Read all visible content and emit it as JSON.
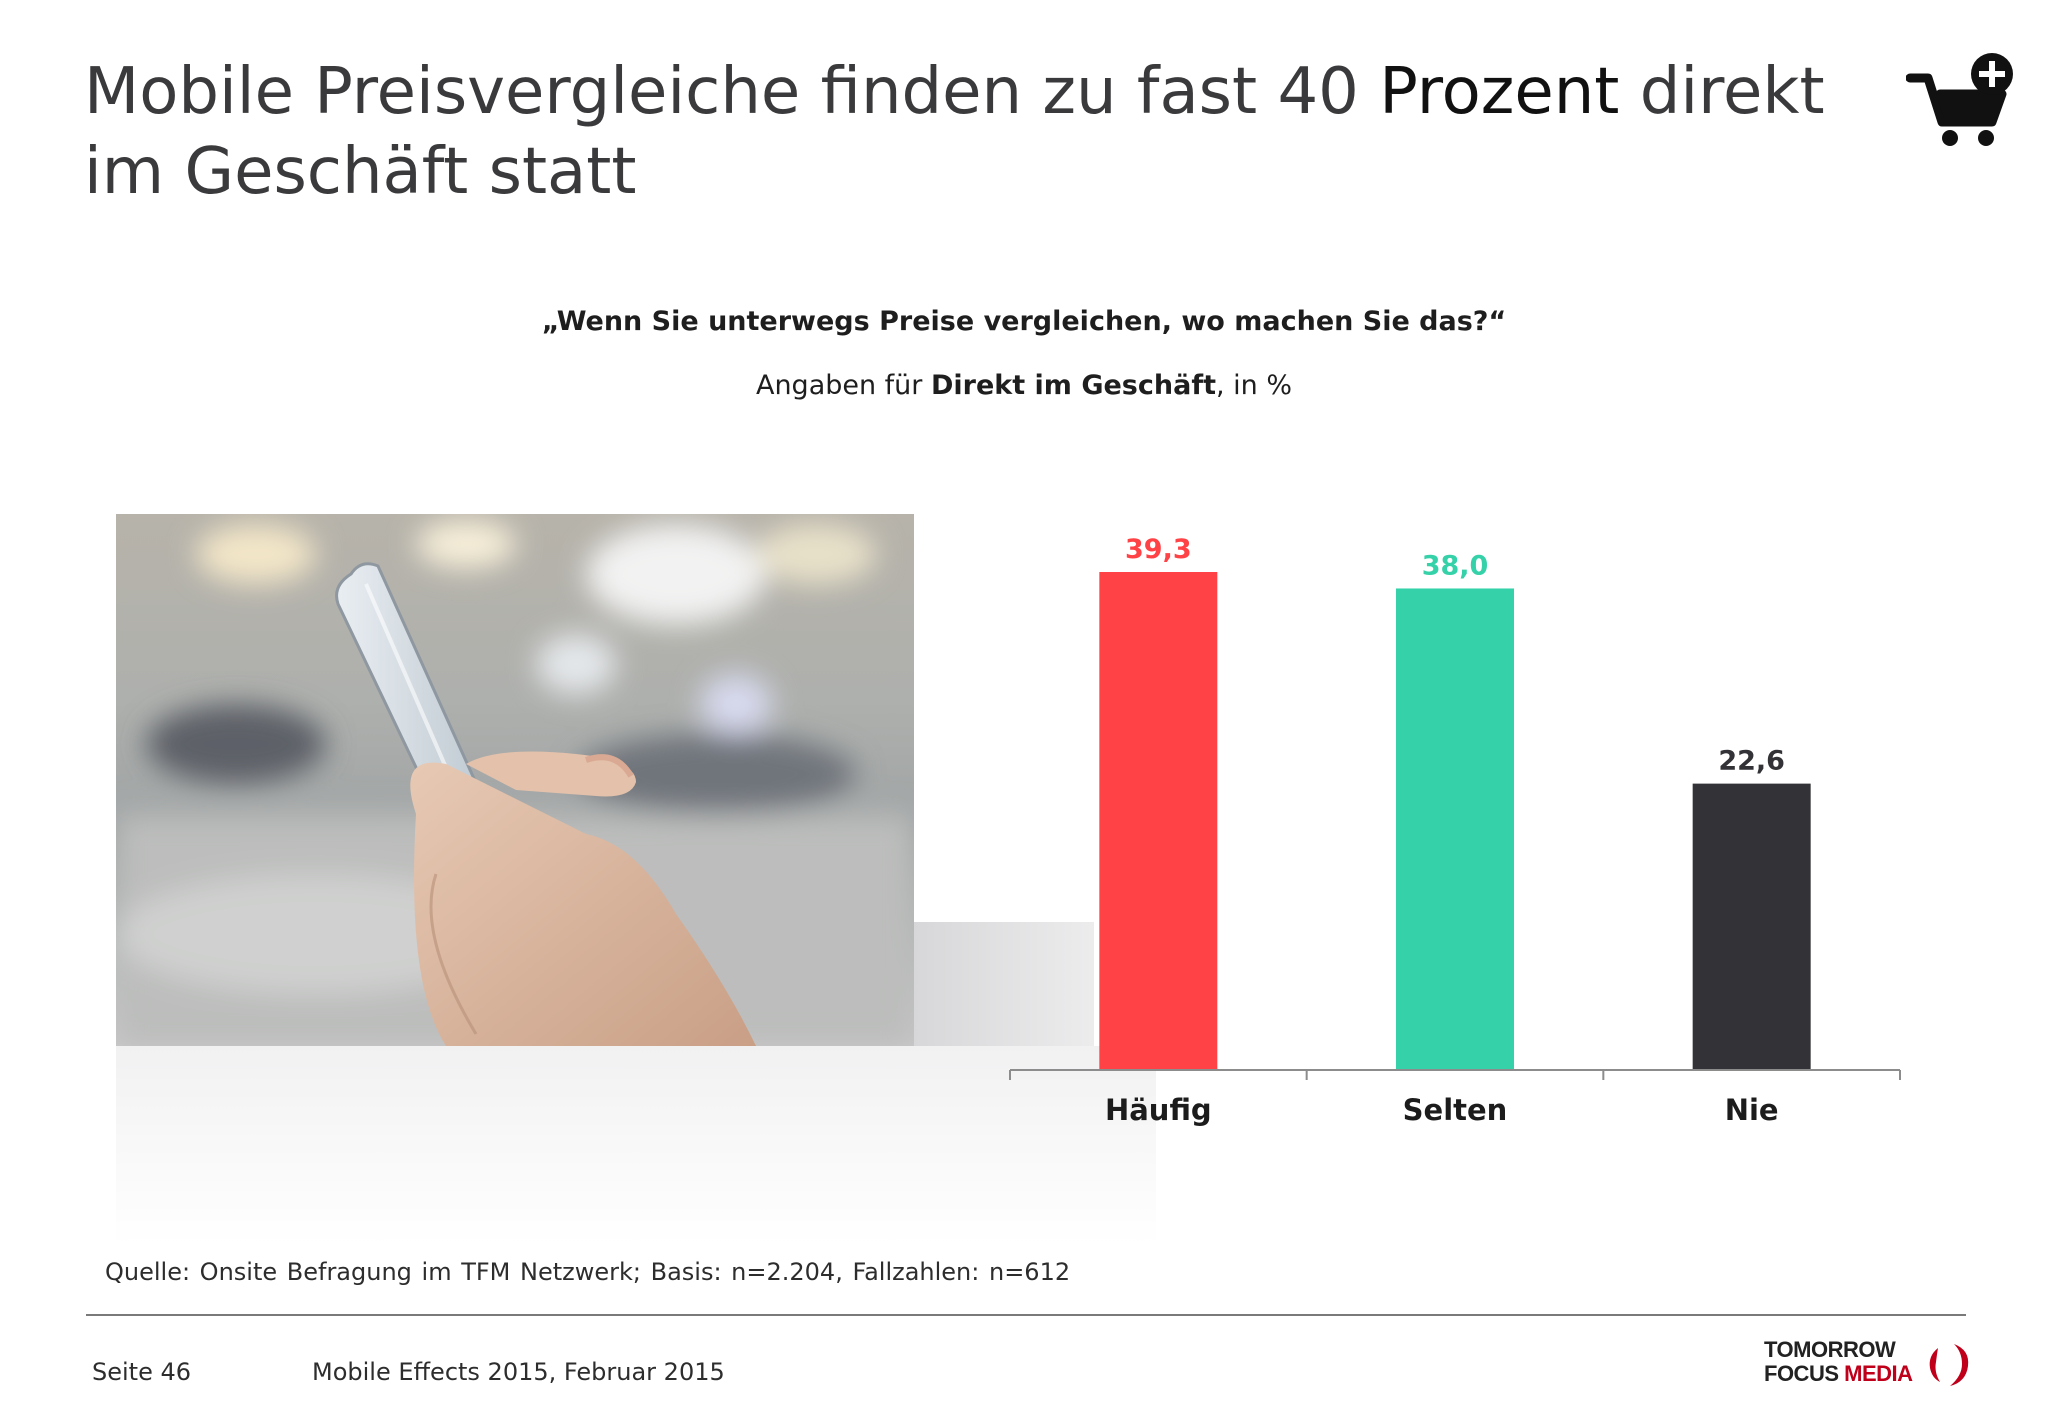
{
  "header": {
    "title_part1": "Mobile Preisvergleiche finden zu fast 40 ",
    "title_strong": "Prozent",
    "title_part2": " direkt im Geschäft statt"
  },
  "question": "„Wenn Sie unterwegs Preise vergleichen, wo machen Sie das?“",
  "basis": {
    "prefix": "Angaben für ",
    "bold": "Direkt im Geschäft",
    "suffix": ", in %"
  },
  "chart_data": {
    "type": "bar",
    "categories": [
      "Häufig",
      "Selten",
      "Nie"
    ],
    "values": [
      39.3,
      38.0,
      22.6
    ],
    "value_labels": [
      "39,3",
      "38,0",
      "22,6"
    ],
    "colors": [
      "#ff4245",
      "#35d1a8",
      "#333236"
    ],
    "label_colors": [
      "#ff4245",
      "#35d1a8",
      "#333236"
    ],
    "ylim": [
      0,
      39.3
    ],
    "grid": false
  },
  "source": "Quelle: Onsite Befragung im TFM Netzwerk; Basis: n=2.204, Fallzahlen: n=612",
  "footer": {
    "page": "Seite 46",
    "report": "Mobile Effects 2015, Februar 2015",
    "logo_line1": "TOMORROW",
    "logo_line2a": "FOCUS ",
    "logo_line2b": "MEDIA"
  },
  "icons": {
    "cart": "shopping-cart-add-icon",
    "photo": "smartphone-hands-photo"
  }
}
